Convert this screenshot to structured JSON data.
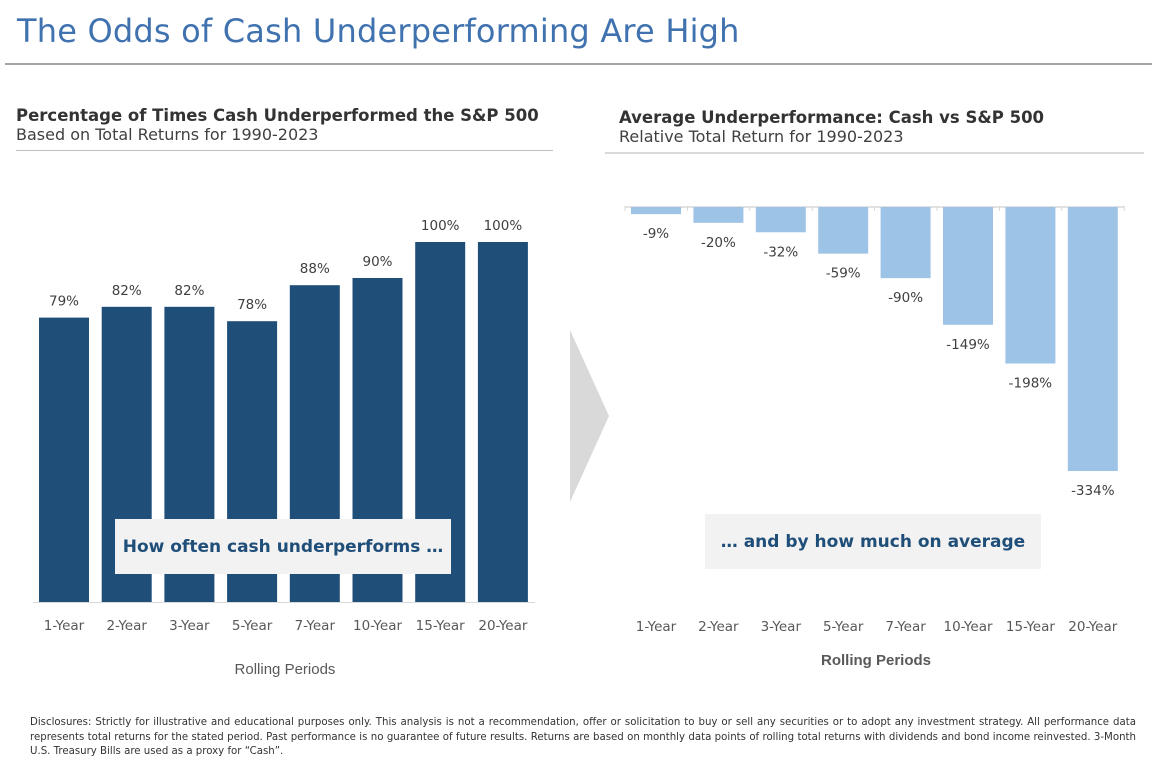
{
  "page": {
    "title": "The Odds of Cash Underperforming Are High",
    "disclosure": "Disclosures: Strictly for illustrative and educational purposes only. This analysis is not a recommendation, offer or solicitation to buy or sell any securities or to adopt any investment strategy. All performance data represents total returns for the stated period. Past performance is no guarantee of future results. Returns are based on monthly data points of rolling total returns with dividends and bond income reinvested. 3-Month U.S. Treasury Bills are used as a proxy for “Cash”."
  },
  "colors": {
    "title": "#3f72af",
    "left_bars": "#1f4e79",
    "right_bars": "#9dc3e6",
    "callout_bg": "#f2f2f2",
    "callout_text": "#1f4e79",
    "arrow": "#d9d9d9"
  },
  "arrow_icon": "chevron-right-arrow",
  "chart_data": [
    {
      "type": "bar",
      "title": "Percentage of Times Cash Underperformed the S&P 500",
      "subtitle": "Based on Total Returns for 1990-2023",
      "categories": [
        "1-Year",
        "2-Year",
        "3-Year",
        "5-Year",
        "7-Year",
        "10-Year",
        "15-Year",
        "20-Year"
      ],
      "values": [
        79,
        82,
        82,
        78,
        88,
        90,
        100,
        100
      ],
      "data_labels": [
        "79%",
        "82%",
        "82%",
        "78%",
        "88%",
        "90%",
        "100%",
        "100%"
      ],
      "xlabel": "Rolling Periods",
      "ylabel": "",
      "ylim": [
        0,
        100
      ],
      "unit": "%",
      "grid": false,
      "annotation": "How often cash underperforms …"
    },
    {
      "type": "bar",
      "title": "Average Underperformance: Cash vs S&P 500",
      "subtitle": "Relative Total Return for 1990-2023",
      "categories": [
        "1-Year",
        "2-Year",
        "3-Year",
        "5-Year",
        "7-Year",
        "10-Year",
        "15-Year",
        "20-Year"
      ],
      "values": [
        -9,
        -20,
        -32,
        -59,
        -90,
        -149,
        -198,
        -334
      ],
      "data_labels": [
        "-9%",
        "-20%",
        "-32%",
        "-59%",
        "-90%",
        "-149%",
        "-198%",
        "-334%"
      ],
      "xlabel": "Rolling Periods",
      "ylabel": "",
      "ylim": [
        -334,
        0
      ],
      "unit": "%",
      "grid": false,
      "annotation": "… and by how much on average"
    }
  ]
}
